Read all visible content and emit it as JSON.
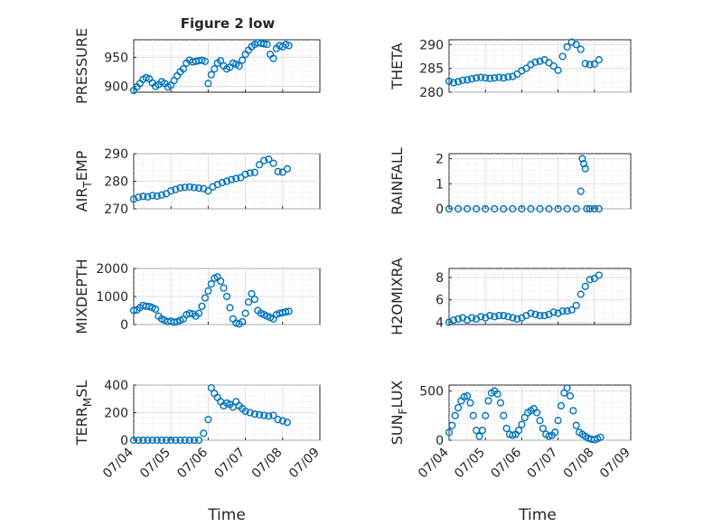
{
  "figure_title": "Figure 2 low",
  "x_axis_label": "Time",
  "x_ticks": [
    "07/04",
    "07/05",
    "07/06",
    "07/07",
    "07/08",
    "07/09"
  ],
  "marker_color": "#0072BD",
  "chart_data": [
    {
      "type": "scatter",
      "ylabel": "PRESSURE",
      "ylim": [
        890,
        980
      ],
      "yticks": [
        900,
        950
      ],
      "title": "Figure 2 low",
      "x": [
        "07/04 00:00",
        "07/04 02:00",
        "07/04 04:00",
        "07/04 06:00",
        "07/04 08:00",
        "07/04 10:00",
        "07/04 12:00",
        "07/04 14:00",
        "07/04 16:00",
        "07/04 18:00",
        "07/04 20:00",
        "07/04 22:00",
        "07/05 00:00",
        "07/05 02:00",
        "07/05 04:00",
        "07/05 06:00",
        "07/05 08:00",
        "07/05 10:00",
        "07/05 12:00",
        "07/05 14:00",
        "07/05 16:00",
        "07/05 18:00",
        "07/05 20:00",
        "07/05 22:00",
        "07/06 00:00",
        "07/06 02:00",
        "07/06 04:00",
        "07/06 06:00",
        "07/06 08:00",
        "07/06 10:00",
        "07/06 12:00",
        "07/06 14:00",
        "07/06 16:00",
        "07/06 18:00",
        "07/06 20:00",
        "07/06 22:00",
        "07/07 00:00",
        "07/07 02:00",
        "07/07 04:00",
        "07/07 06:00",
        "07/07 08:00",
        "07/07 10:00",
        "07/07 12:00",
        "07/07 14:00",
        "07/07 16:00",
        "07/07 18:00",
        "07/07 20:00",
        "07/07 22:00",
        "07/08 00:00",
        "07/08 02:00",
        "07/08 04:00"
      ],
      "values": [
        893,
        899,
        905,
        912,
        915,
        913,
        906,
        900,
        903,
        908,
        905,
        899,
        902,
        910,
        918,
        925,
        930,
        940,
        945,
        942,
        943,
        944,
        945,
        943,
        905,
        920,
        930,
        940,
        944,
        935,
        930,
        933,
        940,
        938,
        935,
        945,
        955,
        962,
        968,
        972,
        975,
        974,
        973,
        972,
        955,
        948,
        965,
        970,
        968,
        972,
        970
      ]
    },
    {
      "type": "scatter",
      "ylabel": "THETA",
      "ylim": [
        280,
        291
      ],
      "yticks": [
        280,
        285,
        290
      ],
      "x": [
        "07/04 00:00",
        "07/04 03:00",
        "07/04 06:00",
        "07/04 09:00",
        "07/04 12:00",
        "07/04 15:00",
        "07/04 18:00",
        "07/04 21:00",
        "07/05 00:00",
        "07/05 03:00",
        "07/05 06:00",
        "07/05 09:00",
        "07/05 12:00",
        "07/05 15:00",
        "07/05 18:00",
        "07/05 21:00",
        "07/06 00:00",
        "07/06 03:00",
        "07/06 06:00",
        "07/06 09:00",
        "07/06 12:00",
        "07/06 15:00",
        "07/06 18:00",
        "07/06 21:00",
        "07/07 00:00",
        "07/07 03:00",
        "07/07 06:00",
        "07/07 09:00",
        "07/07 12:00",
        "07/07 15:00",
        "07/07 18:00",
        "07/07 21:00",
        "07/08 00:00",
        "07/08 03:00"
      ],
      "values": [
        282.3,
        282.0,
        282.2,
        282.5,
        282.6,
        282.8,
        283.0,
        283.1,
        283.0,
        282.9,
        283.0,
        283.1,
        283.0,
        283.2,
        283.3,
        283.8,
        284.5,
        285.0,
        285.8,
        286.3,
        286.5,
        286.8,
        286.2,
        285.5,
        284.6,
        287.5,
        289.5,
        290.5,
        290.0,
        289.0,
        286.0,
        285.8,
        285.9,
        286.8
      ]
    },
    {
      "type": "scatter",
      "ylabel": "AIR_TEMP",
      "ylim": [
        270,
        290
      ],
      "yticks": [
        270,
        280,
        290
      ],
      "x": [
        "07/04 00:00",
        "07/04 03:00",
        "07/04 06:00",
        "07/04 09:00",
        "07/04 12:00",
        "07/04 15:00",
        "07/04 18:00",
        "07/04 21:00",
        "07/05 00:00",
        "07/05 03:00",
        "07/05 06:00",
        "07/05 09:00",
        "07/05 12:00",
        "07/05 15:00",
        "07/05 18:00",
        "07/05 21:00",
        "07/06 00:00",
        "07/06 03:00",
        "07/06 06:00",
        "07/06 09:00",
        "07/06 12:00",
        "07/06 15:00",
        "07/06 18:00",
        "07/06 21:00",
        "07/07 00:00",
        "07/07 03:00",
        "07/07 06:00",
        "07/07 09:00",
        "07/07 12:00",
        "07/07 15:00",
        "07/07 18:00",
        "07/07 21:00",
        "07/08 00:00",
        "07/08 03:00"
      ],
      "values": [
        273.5,
        274.2,
        274.5,
        274.3,
        274.8,
        274.6,
        275.0,
        275.5,
        276.5,
        277.0,
        277.6,
        277.8,
        277.9,
        277.7,
        277.5,
        277.3,
        276.5,
        278.0,
        278.8,
        279.5,
        280.0,
        280.6,
        281.0,
        281.3,
        282.5,
        283.0,
        283.2,
        286.0,
        287.5,
        288.0,
        286.5,
        283.5,
        283.3,
        284.5
      ]
    },
    {
      "type": "scatter",
      "ylabel": "RAINFALL",
      "ylim": [
        0,
        2.2
      ],
      "yticks": [
        0,
        1,
        2
      ],
      "x": [
        "07/04 00:00",
        "07/04 06:00",
        "07/04 12:00",
        "07/04 18:00",
        "07/05 00:00",
        "07/05 06:00",
        "07/05 12:00",
        "07/05 18:00",
        "07/06 00:00",
        "07/06 06:00",
        "07/06 12:00",
        "07/06 18:00",
        "07/07 00:00",
        "07/07 06:00",
        "07/07 12:00",
        "07/07 15:00",
        "07/07 16:00",
        "07/07 17:00",
        "07/07 18:00",
        "07/07 19:00",
        "07/07 21:00",
        "07/08 00:00",
        "07/08 03:00"
      ],
      "values": [
        0,
        0,
        0,
        0,
        0,
        0,
        0,
        0,
        0,
        0,
        0,
        0,
        0,
        0,
        0,
        0.7,
        2.0,
        1.8,
        1.6,
        0,
        0,
        0,
        0
      ]
    },
    {
      "type": "scatter",
      "ylabel": "MIXDEPTH",
      "ylim": [
        0,
        2000
      ],
      "yticks": [
        0,
        1000,
        2000
      ],
      "x": [
        "07/04 00:00",
        "07/04 02:00",
        "07/04 04:00",
        "07/04 06:00",
        "07/04 08:00",
        "07/04 10:00",
        "07/04 12:00",
        "07/04 14:00",
        "07/04 16:00",
        "07/04 18:00",
        "07/04 20:00",
        "07/04 22:00",
        "07/05 00:00",
        "07/05 02:00",
        "07/05 04:00",
        "07/05 06:00",
        "07/05 08:00",
        "07/05 10:00",
        "07/05 12:00",
        "07/05 14:00",
        "07/05 16:00",
        "07/05 18:00",
        "07/05 20:00",
        "07/05 22:00",
        "07/06 00:00",
        "07/06 02:00",
        "07/06 04:00",
        "07/06 06:00",
        "07/06 08:00",
        "07/06 10:00",
        "07/06 12:00",
        "07/06 14:00",
        "07/06 16:00",
        "07/06 18:00",
        "07/06 20:00",
        "07/06 22:00",
        "07/07 00:00",
        "07/07 02:00",
        "07/07 04:00",
        "07/07 06:00",
        "07/07 08:00",
        "07/07 10:00",
        "07/07 12:00",
        "07/07 14:00",
        "07/07 16:00",
        "07/07 18:00",
        "07/07 20:00",
        "07/07 22:00",
        "07/08 00:00",
        "07/08 02:00",
        "07/08 04:00"
      ],
      "values": [
        500,
        520,
        600,
        680,
        650,
        640,
        600,
        550,
        300,
        200,
        150,
        100,
        120,
        80,
        100,
        150,
        200,
        350,
        400,
        380,
        300,
        400,
        650,
        950,
        1200,
        1450,
        1650,
        1700,
        1550,
        1300,
        1000,
        600,
        200,
        50,
        20,
        100,
        400,
        800,
        1100,
        900,
        500,
        400,
        350,
        300,
        250,
        200,
        350,
        400,
        420,
        450,
        470
      ]
    },
    {
      "type": "scatter",
      "ylabel": "H2OMIXRA",
      "ylim": [
        3.8,
        8.8
      ],
      "yticks": [
        4,
        6,
        8
      ],
      "x": [
        "07/04 00:00",
        "07/04 03:00",
        "07/04 06:00",
        "07/04 09:00",
        "07/04 12:00",
        "07/04 15:00",
        "07/04 18:00",
        "07/04 21:00",
        "07/05 00:00",
        "07/05 03:00",
        "07/05 06:00",
        "07/05 09:00",
        "07/05 12:00",
        "07/05 15:00",
        "07/05 18:00",
        "07/05 21:00",
        "07/06 00:00",
        "07/06 03:00",
        "07/06 06:00",
        "07/06 09:00",
        "07/06 12:00",
        "07/06 15:00",
        "07/06 18:00",
        "07/06 21:00",
        "07/07 00:00",
        "07/07 03:00",
        "07/07 06:00",
        "07/07 09:00",
        "07/07 12:00",
        "07/07 15:00",
        "07/07 18:00",
        "07/07 21:00",
        "07/08 00:00",
        "07/08 03:00"
      ],
      "values": [
        4.0,
        4.2,
        4.3,
        4.4,
        4.2,
        4.4,
        4.3,
        4.5,
        4.4,
        4.6,
        4.5,
        4.6,
        4.6,
        4.5,
        4.4,
        4.3,
        4.4,
        4.6,
        4.8,
        4.7,
        4.6,
        4.6,
        4.7,
        4.9,
        4.8,
        5.0,
        5.0,
        5.1,
        5.5,
        6.5,
        7.2,
        7.8,
        7.9,
        8.2
      ]
    },
    {
      "type": "scatter",
      "ylabel": "TERR_MSL",
      "ylim": [
        0,
        400
      ],
      "yticks": [
        0,
        200,
        400
      ],
      "x": [
        "07/04 00:00",
        "07/04 03:00",
        "07/04 06:00",
        "07/04 09:00",
        "07/04 12:00",
        "07/04 15:00",
        "07/04 18:00",
        "07/04 21:00",
        "07/05 00:00",
        "07/05 03:00",
        "07/05 06:00",
        "07/05 09:00",
        "07/05 12:00",
        "07/05 15:00",
        "07/05 18:00",
        "07/05 21:00",
        "07/06 00:00",
        "07/06 02:00",
        "07/06 04:00",
        "07/06 06:00",
        "07/06 08:00",
        "07/06 10:00",
        "07/06 12:00",
        "07/06 14:00",
        "07/06 16:00",
        "07/06 18:00",
        "07/06 20:00",
        "07/06 22:00",
        "07/07 00:00",
        "07/07 03:00",
        "07/07 06:00",
        "07/07 09:00",
        "07/07 12:00",
        "07/07 15:00",
        "07/07 18:00",
        "07/07 21:00",
        "07/08 00:00",
        "07/08 03:00"
      ],
      "values": [
        0,
        0,
        0,
        0,
        0,
        0,
        0,
        0,
        0,
        0,
        0,
        0,
        0,
        0,
        0,
        50,
        150,
        380,
        340,
        310,
        280,
        250,
        270,
        260,
        240,
        280,
        250,
        230,
        210,
        200,
        190,
        185,
        180,
        175,
        180,
        150,
        140,
        130
      ]
    },
    {
      "type": "scatter",
      "ylabel": "SUN_FLUX",
      "ylim": [
        0,
        560
      ],
      "yticks": [
        0,
        500
      ],
      "x": [
        "07/04 00:00",
        "07/04 02:00",
        "07/04 04:00",
        "07/04 06:00",
        "07/04 08:00",
        "07/04 10:00",
        "07/04 12:00",
        "07/04 14:00",
        "07/04 16:00",
        "07/04 18:00",
        "07/04 20:00",
        "07/04 22:00",
        "07/05 00:00",
        "07/05 02:00",
        "07/05 04:00",
        "07/05 06:00",
        "07/05 08:00",
        "07/05 10:00",
        "07/05 12:00",
        "07/05 14:00",
        "07/05 16:00",
        "07/05 18:00",
        "07/05 20:00",
        "07/05 22:00",
        "07/06 00:00",
        "07/06 02:00",
        "07/06 04:00",
        "07/06 06:00",
        "07/06 08:00",
        "07/06 10:00",
        "07/06 12:00",
        "07/06 14:00",
        "07/06 16:00",
        "07/06 18:00",
        "07/06 20:00",
        "07/06 22:00",
        "07/07 00:00",
        "07/07 02:00",
        "07/07 04:00",
        "07/07 06:00",
        "07/07 08:00",
        "07/07 10:00",
        "07/07 12:00",
        "07/07 14:00",
        "07/07 16:00",
        "07/07 18:00",
        "07/07 20:00",
        "07/07 22:00",
        "07/08 00:00",
        "07/08 02:00",
        "07/08 04:00"
      ],
      "values": [
        80,
        150,
        250,
        330,
        400,
        440,
        450,
        380,
        250,
        100,
        40,
        100,
        250,
        400,
        480,
        500,
        470,
        380,
        250,
        120,
        60,
        50,
        60,
        100,
        160,
        230,
        280,
        300,
        320,
        280,
        200,
        120,
        60,
        40,
        50,
        80,
        200,
        350,
        480,
        530,
        450,
        300,
        150,
        80,
        60,
        40,
        20,
        10,
        5,
        15,
        30
      ]
    }
  ]
}
